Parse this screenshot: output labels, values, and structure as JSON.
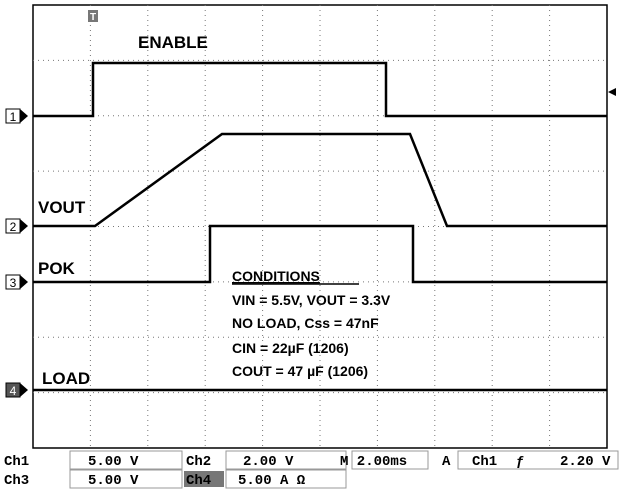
{
  "traces": {
    "enable": "ENABLE",
    "vout": "VOUT",
    "pok": "POK",
    "load": "LOAD"
  },
  "markers": {
    "ch1": "1",
    "ch2": "2",
    "ch3": "3",
    "ch4": "4",
    "trigger": "T"
  },
  "conditions": {
    "title": "CONDITIONS",
    "lines": [
      "VIN = 5.5V, VOUT = 3.3V",
      "NO LOAD, Css = 47nF",
      "CIN = 22µF (1206)",
      "COUT = 47 µF (1206)"
    ]
  },
  "status": {
    "row1": {
      "ch1": "Ch1",
      "ch1_scale": "5.00 V",
      "ch2": "Ch2",
      "ch2_scale": "2.00 V",
      "time": "M 2.00ms",
      "trigger_mode": "A",
      "trigger_source": "Ch1",
      "trigger_edge": "ƒ",
      "trigger_level": "2.20 V"
    },
    "row2": {
      "ch3": "Ch3",
      "ch3_scale": "5.00 V",
      "ch4": "Ch4",
      "ch4_scale": "5.00 A Ω"
    }
  }
}
